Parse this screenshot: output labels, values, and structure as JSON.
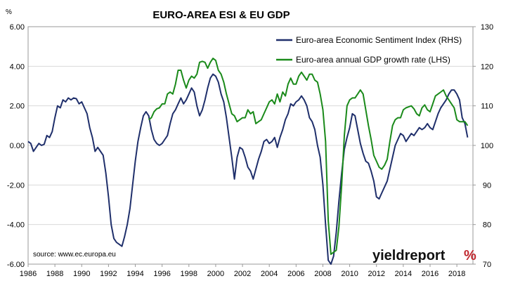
{
  "chart_data": {
    "type": "line",
    "title": "EURO-AREA ESI & EU GDP",
    "y_left_unit": "%",
    "y_left_ticks": [
      "6.00",
      "4.00",
      "2.00",
      "0.00",
      "-2.00",
      "-4.00",
      "-6.00"
    ],
    "y_left_range": [
      -6,
      6
    ],
    "y_right_ticks": [
      "130",
      "120",
      "110",
      "100",
      "90",
      "80",
      "70"
    ],
    "y_right_range": [
      70,
      130
    ],
    "x_ticks": [
      "1986",
      "1988",
      "1990",
      "1992",
      "1994",
      "1996",
      "1998",
      "2000",
      "2002",
      "2004",
      "2006",
      "2008",
      "2010",
      "2012",
      "2014",
      "2016",
      "2018"
    ],
    "x_range": [
      1986,
      2019.2
    ],
    "grid": "horizontal",
    "legend_position": "top-right",
    "source": "source: www.ec.europa.eu",
    "brand": {
      "text": "yieldreport",
      "symbol": "%"
    },
    "series": [
      {
        "name": "Euro-area Economic Sentiment Index (RHS)",
        "axis": "right",
        "color": "#1f2f6b",
        "points": [
          [
            1986.0,
            101.0
          ],
          [
            1986.2,
            100.5
          ],
          [
            1986.4,
            98.5
          ],
          [
            1986.6,
            99.5
          ],
          [
            1986.8,
            100.5
          ],
          [
            1987.0,
            100.0
          ],
          [
            1987.2,
            100.3
          ],
          [
            1987.4,
            102.5
          ],
          [
            1987.6,
            102.0
          ],
          [
            1987.8,
            103.5
          ],
          [
            1988.0,
            107.0
          ],
          [
            1988.2,
            110.0
          ],
          [
            1988.4,
            109.5
          ],
          [
            1988.6,
            111.5
          ],
          [
            1988.8,
            111.0
          ],
          [
            1989.0,
            112.0
          ],
          [
            1989.2,
            111.5
          ],
          [
            1989.4,
            112.0
          ],
          [
            1989.6,
            111.8
          ],
          [
            1989.8,
            110.5
          ],
          [
            1990.0,
            111.0
          ],
          [
            1990.2,
            109.5
          ],
          [
            1990.4,
            108.0
          ],
          [
            1990.6,
            104.5
          ],
          [
            1990.8,
            102.0
          ],
          [
            1991.0,
            98.5
          ],
          [
            1991.2,
            99.5
          ],
          [
            1991.4,
            98.5
          ],
          [
            1991.6,
            97.5
          ],
          [
            1991.8,
            93.0
          ],
          [
            1992.0,
            87.0
          ],
          [
            1992.2,
            80.0
          ],
          [
            1992.4,
            76.5
          ],
          [
            1992.6,
            75.5
          ],
          [
            1992.8,
            75.0
          ],
          [
            1993.0,
            74.5
          ],
          [
            1993.2,
            77.0
          ],
          [
            1993.4,
            80.0
          ],
          [
            1993.6,
            84.0
          ],
          [
            1993.8,
            90.0
          ],
          [
            1994.0,
            96.0
          ],
          [
            1994.2,
            101.0
          ],
          [
            1994.4,
            104.5
          ],
          [
            1994.6,
            107.5
          ],
          [
            1994.8,
            108.5
          ],
          [
            1995.0,
            107.5
          ],
          [
            1995.2,
            104.0
          ],
          [
            1995.4,
            101.5
          ],
          [
            1995.6,
            100.5
          ],
          [
            1995.8,
            100.0
          ],
          [
            1996.0,
            100.5
          ],
          [
            1996.2,
            101.5
          ],
          [
            1996.4,
            102.5
          ],
          [
            1996.6,
            105.5
          ],
          [
            1996.8,
            108.0
          ],
          [
            1997.0,
            109.0
          ],
          [
            1997.2,
            110.5
          ],
          [
            1997.4,
            112.0
          ],
          [
            1997.6,
            110.5
          ],
          [
            1997.8,
            111.5
          ],
          [
            1998.0,
            113.0
          ],
          [
            1998.2,
            114.5
          ],
          [
            1998.4,
            113.5
          ],
          [
            1998.6,
            110.0
          ],
          [
            1998.8,
            107.5
          ],
          [
            1999.0,
            109.0
          ],
          [
            1999.2,
            111.5
          ],
          [
            1999.4,
            114.5
          ],
          [
            1999.6,
            117.0
          ],
          [
            1999.8,
            118.0
          ],
          [
            2000.0,
            117.5
          ],
          [
            2000.2,
            116.0
          ],
          [
            2000.4,
            113.0
          ],
          [
            2000.6,
            111.0
          ],
          [
            2000.8,
            107.0
          ],
          [
            2001.0,
            102.0
          ],
          [
            2001.2,
            97.0
          ],
          [
            2001.4,
            91.5
          ],
          [
            2001.6,
            97.0
          ],
          [
            2001.8,
            99.5
          ],
          [
            2002.0,
            99.0
          ],
          [
            2002.2,
            97.0
          ],
          [
            2002.4,
            94.5
          ],
          [
            2002.6,
            93.5
          ],
          [
            2002.8,
            91.5
          ],
          [
            2003.0,
            94.0
          ],
          [
            2003.2,
            96.5
          ],
          [
            2003.4,
            98.5
          ],
          [
            2003.6,
            101.0
          ],
          [
            2003.8,
            101.5
          ],
          [
            2004.0,
            100.5
          ],
          [
            2004.2,
            101.0
          ],
          [
            2004.4,
            102.0
          ],
          [
            2004.6,
            99.5
          ],
          [
            2004.8,
            102.0
          ],
          [
            2005.0,
            104.0
          ],
          [
            2005.2,
            106.5
          ],
          [
            2005.4,
            108.0
          ],
          [
            2005.6,
            110.5
          ],
          [
            2005.8,
            110.0
          ],
          [
            2006.0,
            111.0
          ],
          [
            2006.2,
            111.5
          ],
          [
            2006.4,
            112.5
          ],
          [
            2006.6,
            111.5
          ],
          [
            2006.8,
            110.0
          ],
          [
            2007.0,
            107.0
          ],
          [
            2007.2,
            106.0
          ],
          [
            2007.4,
            104.0
          ],
          [
            2007.6,
            100.0
          ],
          [
            2007.8,
            97.0
          ],
          [
            2008.0,
            90.0
          ],
          [
            2008.2,
            80.0
          ],
          [
            2008.4,
            71.0
          ],
          [
            2008.6,
            70.0
          ],
          [
            2008.8,
            72.0
          ],
          [
            2009.0,
            78.0
          ],
          [
            2009.2,
            86.0
          ],
          [
            2009.4,
            93.0
          ],
          [
            2009.6,
            99.0
          ],
          [
            2009.8,
            102.0
          ],
          [
            2010.0,
            104.5
          ],
          [
            2010.2,
            108.0
          ],
          [
            2010.4,
            107.5
          ],
          [
            2010.6,
            104.0
          ],
          [
            2010.8,
            100.5
          ],
          [
            2011.0,
            98.0
          ],
          [
            2011.2,
            96.0
          ],
          [
            2011.4,
            95.5
          ],
          [
            2011.6,
            93.5
          ],
          [
            2011.8,
            91.0
          ],
          [
            2012.0,
            87.0
          ],
          [
            2012.2,
            86.5
          ],
          [
            2012.4,
            88.0
          ],
          [
            2012.6,
            89.5
          ],
          [
            2012.8,
            91.0
          ],
          [
            2013.0,
            94.0
          ],
          [
            2013.2,
            97.0
          ],
          [
            2013.4,
            100.0
          ],
          [
            2013.6,
            101.5
          ],
          [
            2013.8,
            103.0
          ],
          [
            2014.0,
            102.5
          ],
          [
            2014.2,
            101.0
          ],
          [
            2014.4,
            102.0
          ],
          [
            2014.6,
            103.0
          ],
          [
            2014.8,
            102.5
          ],
          [
            2015.0,
            103.5
          ],
          [
            2015.2,
            104.5
          ],
          [
            2015.4,
            104.0
          ],
          [
            2015.6,
            104.5
          ],
          [
            2015.8,
            105.5
          ],
          [
            2016.0,
            104.5
          ],
          [
            2016.2,
            104.0
          ],
          [
            2016.4,
            106.0
          ],
          [
            2016.6,
            108.0
          ],
          [
            2016.8,
            109.5
          ],
          [
            2017.0,
            110.5
          ],
          [
            2017.2,
            111.5
          ],
          [
            2017.4,
            113.0
          ],
          [
            2017.6,
            114.0
          ],
          [
            2017.8,
            114.0
          ],
          [
            2018.0,
            113.0
          ],
          [
            2018.2,
            111.5
          ],
          [
            2018.4,
            107.0
          ],
          [
            2018.6,
            105.5
          ],
          [
            2018.8,
            102.0
          ]
        ]
      },
      {
        "name": "Euro-area annual GDP growth rate (LHS)",
        "axis": "left",
        "color": "#1a8a1a",
        "points": [
          [
            1995.0,
            1.3
          ],
          [
            1995.2,
            1.4
          ],
          [
            1995.4,
            1.7
          ],
          [
            1995.6,
            1.85
          ],
          [
            1995.8,
            1.9
          ],
          [
            1996.0,
            2.1
          ],
          [
            1996.2,
            2.1
          ],
          [
            1996.4,
            2.6
          ],
          [
            1996.6,
            2.7
          ],
          [
            1996.8,
            2.6
          ],
          [
            1997.0,
            3.1
          ],
          [
            1997.2,
            3.8
          ],
          [
            1997.4,
            3.8
          ],
          [
            1997.6,
            3.3
          ],
          [
            1997.8,
            2.9
          ],
          [
            1998.0,
            3.3
          ],
          [
            1998.2,
            3.5
          ],
          [
            1998.4,
            3.4
          ],
          [
            1998.6,
            3.6
          ],
          [
            1998.8,
            4.2
          ],
          [
            1999.0,
            4.25
          ],
          [
            1999.2,
            4.2
          ],
          [
            1999.4,
            3.9
          ],
          [
            1999.6,
            4.2
          ],
          [
            1999.8,
            4.4
          ],
          [
            2000.0,
            4.3
          ],
          [
            2000.2,
            3.8
          ],
          [
            2000.4,
            3.6
          ],
          [
            2000.6,
            3.2
          ],
          [
            2000.8,
            2.6
          ],
          [
            2001.0,
            2.1
          ],
          [
            2001.2,
            1.6
          ],
          [
            2001.4,
            1.5
          ],
          [
            2001.6,
            1.2
          ],
          [
            2001.8,
            1.3
          ],
          [
            2002.0,
            1.4
          ],
          [
            2002.2,
            1.4
          ],
          [
            2002.4,
            1.8
          ],
          [
            2002.6,
            1.6
          ],
          [
            2002.8,
            1.7
          ],
          [
            2003.0,
            1.1
          ],
          [
            2003.2,
            1.2
          ],
          [
            2003.4,
            1.3
          ],
          [
            2003.6,
            1.6
          ],
          [
            2003.8,
            1.9
          ],
          [
            2004.0,
            2.2
          ],
          [
            2004.2,
            2.3
          ],
          [
            2004.4,
            2.1
          ],
          [
            2004.6,
            2.6
          ],
          [
            2004.8,
            2.2
          ],
          [
            2005.0,
            2.7
          ],
          [
            2005.2,
            2.5
          ],
          [
            2005.4,
            3.1
          ],
          [
            2005.6,
            3.4
          ],
          [
            2005.8,
            3.1
          ],
          [
            2006.0,
            3.1
          ],
          [
            2006.2,
            3.5
          ],
          [
            2006.4,
            3.7
          ],
          [
            2006.6,
            3.5
          ],
          [
            2006.8,
            3.3
          ],
          [
            2007.0,
            3.6
          ],
          [
            2007.2,
            3.6
          ],
          [
            2007.4,
            3.3
          ],
          [
            2007.6,
            3.2
          ],
          [
            2007.8,
            2.6
          ],
          [
            2008.0,
            1.8
          ],
          [
            2008.2,
            0.2
          ],
          [
            2008.4,
            -3.8
          ],
          [
            2008.6,
            -5.5
          ],
          [
            2008.8,
            -5.4
          ],
          [
            2009.0,
            -5.3
          ],
          [
            2009.2,
            -4.1
          ],
          [
            2009.4,
            -2.0
          ],
          [
            2009.6,
            0.5
          ],
          [
            2009.8,
            2.0
          ],
          [
            2010.0,
            2.3
          ],
          [
            2010.2,
            2.4
          ],
          [
            2010.4,
            2.4
          ],
          [
            2010.6,
            2.6
          ],
          [
            2010.8,
            2.8
          ],
          [
            2011.0,
            2.6
          ],
          [
            2011.2,
            1.8
          ],
          [
            2011.4,
            1.0
          ],
          [
            2011.6,
            0.3
          ],
          [
            2011.8,
            -0.5
          ],
          [
            2012.0,
            -0.8
          ],
          [
            2012.2,
            -1.1
          ],
          [
            2012.4,
            -1.2
          ],
          [
            2012.6,
            -1.0
          ],
          [
            2012.8,
            -0.7
          ],
          [
            2013.0,
            0.2
          ],
          [
            2013.2,
            1.0
          ],
          [
            2013.4,
            1.3
          ],
          [
            2013.6,
            1.4
          ],
          [
            2013.8,
            1.4
          ],
          [
            2014.0,
            1.8
          ],
          [
            2014.2,
            1.9
          ],
          [
            2014.4,
            1.95
          ],
          [
            2014.6,
            2.0
          ],
          [
            2014.8,
            1.85
          ],
          [
            2015.0,
            1.6
          ],
          [
            2015.2,
            1.5
          ],
          [
            2015.4,
            1.9
          ],
          [
            2015.6,
            2.05
          ],
          [
            2015.8,
            1.8
          ],
          [
            2016.0,
            1.7
          ],
          [
            2016.2,
            2.1
          ],
          [
            2016.4,
            2.5
          ],
          [
            2016.6,
            2.6
          ],
          [
            2016.8,
            2.7
          ],
          [
            2017.0,
            2.8
          ],
          [
            2017.2,
            2.5
          ],
          [
            2017.4,
            2.3
          ],
          [
            2017.6,
            2.1
          ],
          [
            2017.8,
            1.9
          ],
          [
            2018.0,
            1.3
          ],
          [
            2018.2,
            1.2
          ],
          [
            2018.4,
            1.2
          ],
          [
            2018.6,
            1.2
          ],
          [
            2018.8,
            1.0
          ]
        ]
      }
    ]
  }
}
